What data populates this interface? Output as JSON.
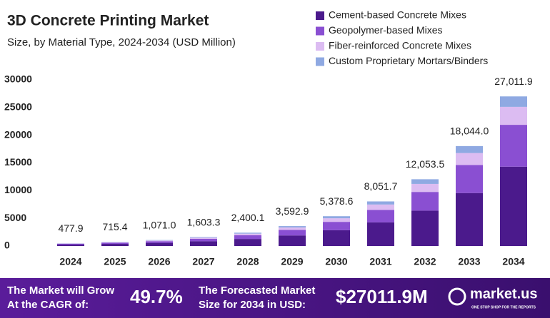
{
  "chart_data": {
    "type": "stacked_bar",
    "title": "3D Concrete Printing Market",
    "subtitle": "Size, by Material Type, 2024-2034 (USD Million)",
    "categories": [
      "2024",
      "2025",
      "2026",
      "2027",
      "2028",
      "2029",
      "2030",
      "2031",
      "2032",
      "2033",
      "2034"
    ],
    "series": [
      {
        "name": "Cement-based Concrete Mixes",
        "color": "#4b1a8c",
        "values": [
          253,
          379,
          568,
          850,
          1272,
          1904,
          2851,
          4267,
          6388,
          9563,
          14316
        ]
      },
      {
        "name": "Geopolymer-based Mixes",
        "color": "#8a4fd2",
        "values": [
          134,
          200,
          300,
          449,
          672,
          1006,
          1506,
          2254,
          3375,
          5052,
          7563
        ]
      },
      {
        "name": "Fiber-reinforced Concrete Mixes",
        "color": "#dcbcf2",
        "values": [
          57,
          86,
          128,
          192,
          288,
          431,
          645,
          966,
          1446,
          2165,
          3241
        ]
      },
      {
        "name": "Custom Proprietary Mortars/Binders",
        "color": "#8fa9e2",
        "values": [
          34,
          50,
          75,
          112,
          168,
          252,
          377,
          564,
          844,
          1263,
          1891
        ]
      }
    ],
    "totals": {
      "values": [
        477.9,
        715.4,
        1071.0,
        1603.3,
        2400.1,
        3592.9,
        5378.6,
        8051.7,
        12053.5,
        18044.0,
        27011.9
      ],
      "value_labels": [
        "477.9",
        "715.4",
        "1,071.0",
        "1,603.3",
        "2,400.1",
        "3,592.9",
        "5,378.6",
        "8,051.7",
        "12,053.5",
        "18,044.0",
        "27,011.9"
      ]
    },
    "ylim": [
      0,
      30000
    ],
    "yticks": [
      0,
      5000,
      10000,
      15000,
      20000,
      25000,
      30000
    ],
    "grid": false,
    "legend": "top-right"
  },
  "footer": {
    "cagr_text_1": "The Market will Grow",
    "cagr_text_2": "At the CAGR of:",
    "cagr": "49.7%",
    "forecast_text_1": "The Forecasted Market",
    "forecast_text_2": "Size for 2034 in USD:",
    "forecast": "$27011.9M",
    "brand": "market.us",
    "tagline": "ONE STOP SHOP FOR THE REPORTS"
  }
}
